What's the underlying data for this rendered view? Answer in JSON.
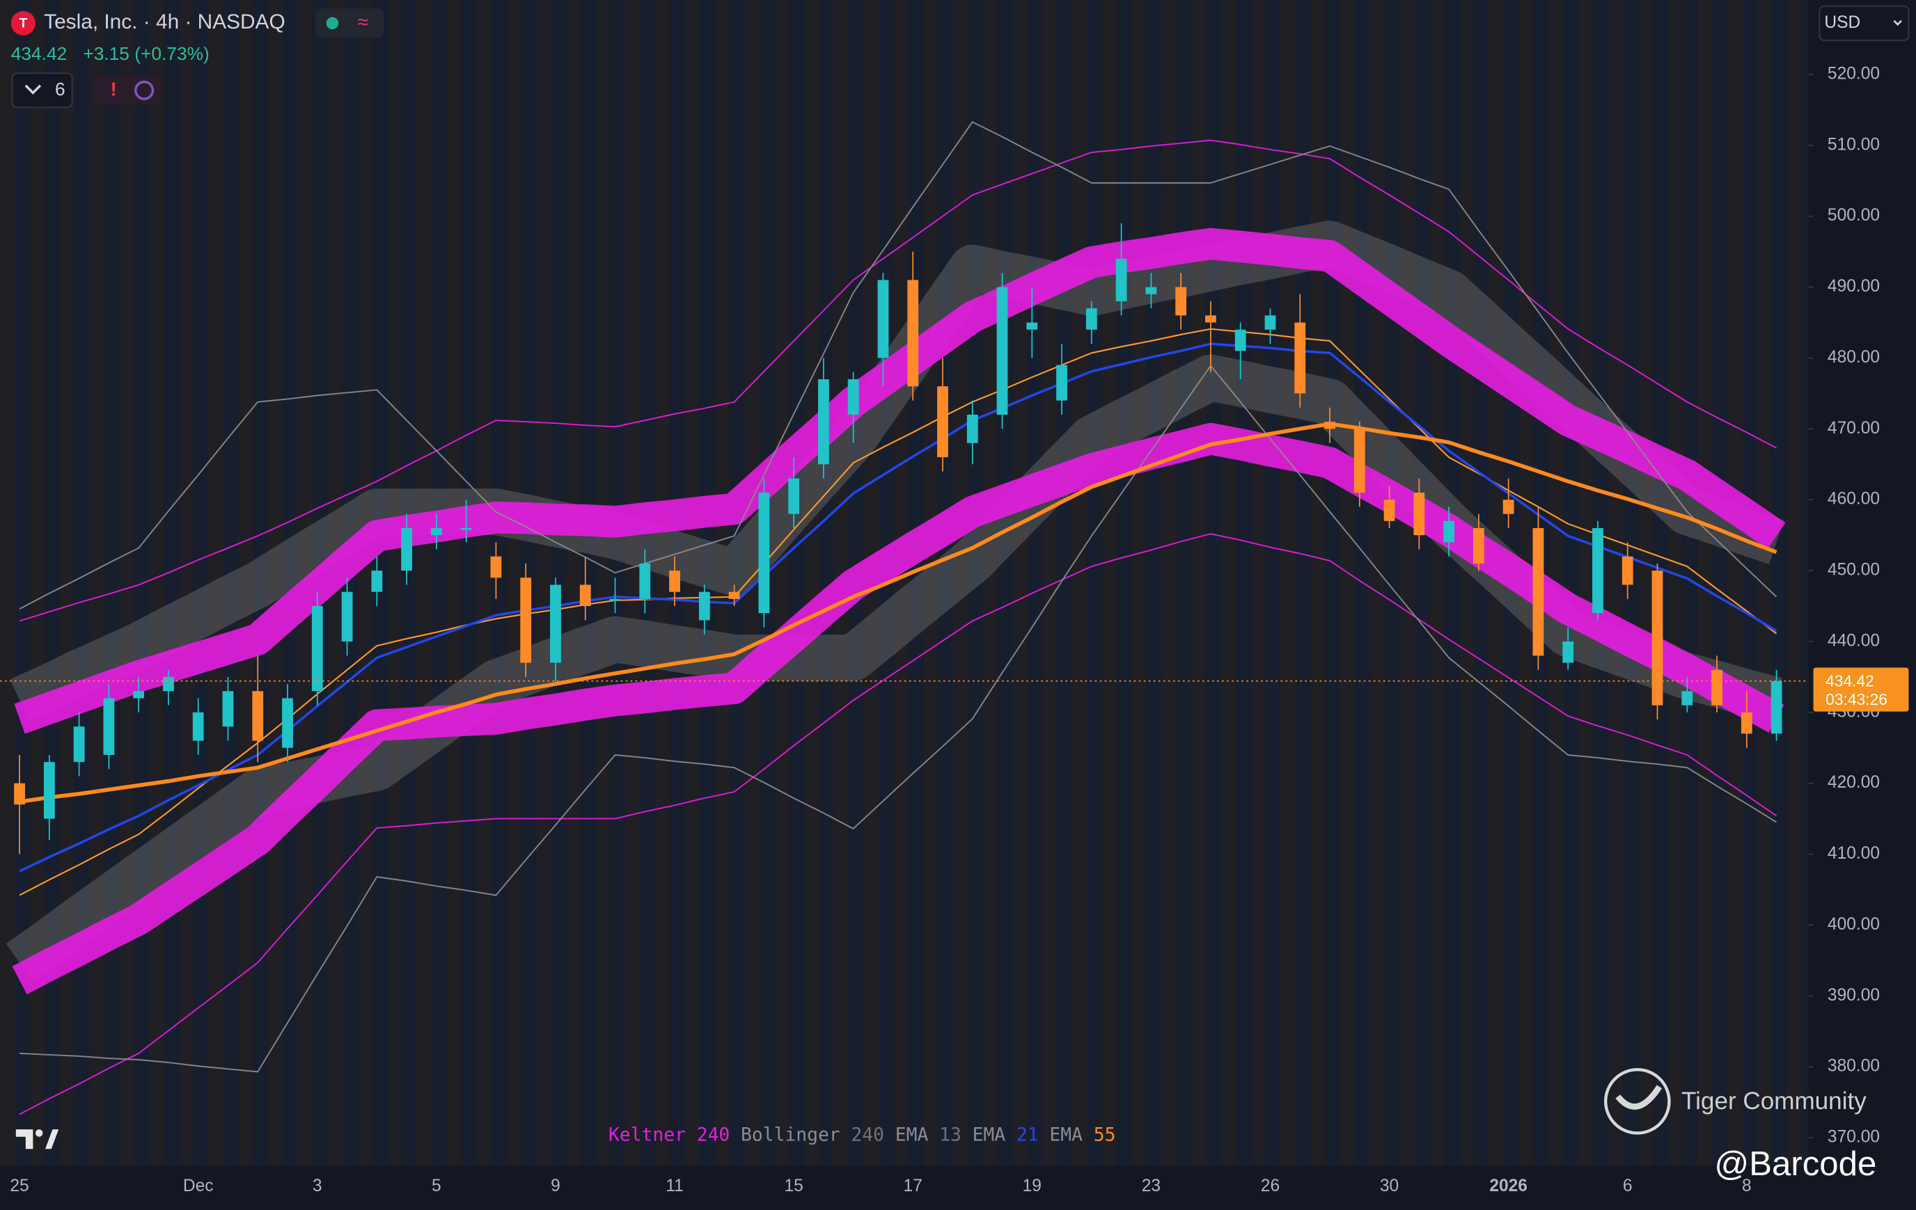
{
  "header": {
    "symbol": "Tesla, Inc. · 4h · NASDAQ",
    "change": "+3.15 (+0.73%)",
    "indicator_count": "6",
    "currency": "USD"
  },
  "price_tag": {
    "countdown": "03:43:26"
  },
  "watermark": {
    "brand": "Tiger Community",
    "user": "@Barcode"
  },
  "chart_data": {
    "type": "candlestick",
    "categories": [
      "25",
      null,
      null,
      null,
      null,
      null,
      "Dec",
      null,
      null,
      null,
      "3",
      null,
      null,
      null,
      "5",
      null,
      null,
      null,
      "9",
      null,
      null,
      null,
      "11",
      null,
      null,
      null,
      "15",
      null,
      null,
      null,
      "17",
      null,
      null,
      null,
      "19",
      null,
      null,
      null,
      "23",
      null,
      null,
      null,
      "26",
      null,
      null,
      null,
      "30",
      null,
      null,
      null,
      "2026",
      null,
      null,
      null,
      "6",
      null,
      null,
      null,
      "8",
      null
    ],
    "candles": {
      "up_color": "#22c3c9",
      "down_color": "#ff8a2a",
      "open": [
        420,
        415,
        423,
        424,
        432,
        433,
        426,
        428,
        433,
        425,
        433,
        440,
        447,
        450,
        455,
        456,
        452,
        449,
        437,
        448,
        446,
        446,
        450,
        443,
        447,
        444,
        458,
        465,
        472,
        480,
        491,
        476,
        468,
        472,
        484,
        474,
        484,
        488,
        489,
        490,
        486,
        481,
        484,
        485,
        471,
        470,
        460,
        461,
        454,
        456,
        460,
        456,
        437,
        444,
        452,
        450,
        431,
        436,
        430,
        427
      ],
      "high": [
        424,
        424,
        430,
        434,
        435,
        436,
        432,
        435,
        438,
        434,
        447,
        449,
        452,
        458,
        458,
        460,
        454,
        451,
        449,
        452,
        449,
        453,
        452,
        448,
        448,
        463,
        466,
        480,
        478,
        492,
        495,
        480,
        474,
        492,
        490,
        482,
        488,
        499,
        492,
        492,
        488,
        485,
        487,
        489,
        473,
        471,
        462,
        463,
        459,
        458,
        463,
        459,
        442,
        457,
        454,
        451,
        435,
        438,
        433,
        436
      ],
      "low": [
        410,
        412,
        421,
        422,
        430,
        431,
        424,
        426,
        423,
        423,
        431,
        438,
        445,
        448,
        453,
        454,
        446,
        435,
        434,
        443,
        444,
        444,
        445,
        441,
        445,
        442,
        456,
        463,
        468,
        476,
        474,
        464,
        465,
        470,
        480,
        472,
        482,
        486,
        487,
        484,
        478,
        477,
        482,
        473,
        468,
        459,
        456,
        453,
        452,
        450,
        456,
        436,
        436,
        443,
        446,
        429,
        430,
        430,
        425,
        426
      ],
      "close": [
        417,
        423,
        428,
        432,
        433,
        435,
        430,
        433,
        426,
        432,
        445,
        447,
        450,
        456,
        456,
        456,
        449,
        437,
        448,
        445,
        446,
        451,
        447,
        447,
        446,
        461,
        463,
        477,
        477,
        491,
        476,
        466,
        472,
        490,
        485,
        479,
        487,
        494,
        490,
        486,
        485,
        484,
        486,
        475,
        470,
        461,
        457,
        455,
        457,
        451,
        458,
        438,
        440,
        456,
        448,
        431,
        433,
        431,
        427,
        434.42
      ]
    },
    "indicators": [
      {
        "name": "Keltner",
        "period": 240,
        "color": "#e61ee0",
        "upper": [
          442.9,
          444.2,
          445.5,
          446.7,
          448.0,
          449.7,
          451.5,
          453.2,
          454.9,
          456.8,
          458.8,
          460.7,
          462.6,
          464.8,
          466.9,
          469.1,
          471.2,
          471.0,
          470.8,
          470.5,
          470.3,
          471.2,
          472.1,
          472.9,
          473.8,
          478.1,
          482.4,
          486.7,
          491.0,
          494.0,
          497.0,
          500.0,
          503.0,
          504.5,
          506.0,
          507.5,
          509.0,
          509.4,
          509.9,
          510.3,
          510.7,
          510.1,
          509.4,
          508.8,
          508.1,
          505.5,
          503.0,
          500.4,
          497.8,
          494.4,
          491.0,
          487.5,
          484.1,
          481.5,
          479.0,
          476.4,
          473.8,
          471.6,
          469.5,
          467.3
        ],
        "lower": [
          373.3,
          375.5,
          377.6,
          379.8,
          381.9,
          385.1,
          388.3,
          391.5,
          394.7,
          399.5,
          404.2,
          409.0,
          413.7,
          414.0,
          414.4,
          414.7,
          415.0,
          415.0,
          415.0,
          415.0,
          415.0,
          416.0,
          416.9,
          417.9,
          418.8,
          422.0,
          425.3,
          428.5,
          431.7,
          434.5,
          437.3,
          440.1,
          442.9,
          444.8,
          446.8,
          448.7,
          450.6,
          451.8,
          452.9,
          454.1,
          455.2,
          454.3,
          453.3,
          452.4,
          451.4,
          448.6,
          445.9,
          443.1,
          440.3,
          437.6,
          434.9,
          432.2,
          429.5,
          428.1,
          426.8,
          425.4,
          424.0,
          421.1,
          418.3,
          415.4
        ],
        "band_upper": [
          429.1,
          430.6,
          432.1,
          433.6,
          435.1,
          436.4,
          437.7,
          439.0,
          440.3,
          444.0,
          447.6,
          451.3,
          454.9,
          455.6,
          456.2,
          456.9,
          457.5,
          457.4,
          457.2,
          457.1,
          456.9,
          457.4,
          457.8,
          458.3,
          458.7,
          462.5,
          466.3,
          470.0,
          473.8,
          476.8,
          479.8,
          482.8,
          485.8,
          487.7,
          489.7,
          491.6,
          493.5,
          494.2,
          494.8,
          495.5,
          496.1,
          495.7,
          495.3,
          494.8,
          494.4,
          491.4,
          488.4,
          485.4,
          482.4,
          479.6,
          476.8,
          474.0,
          471.2,
          469.3,
          467.4,
          465.4,
          463.5,
          460.6,
          457.8,
          454.9
        ],
        "band_lower": [
          392.2,
          394.4,
          396.5,
          398.7,
          400.8,
          403.6,
          406.4,
          409.2,
          412.0,
          416.1,
          420.1,
          424.2,
          428.2,
          428.4,
          428.7,
          428.9,
          429.1,
          429.8,
          430.4,
          431.1,
          431.7,
          432.1,
          432.6,
          433.0,
          433.4,
          437.1,
          440.7,
          444.4,
          448.0,
          450.6,
          453.2,
          455.7,
          458.3,
          459.8,
          461.3,
          462.8,
          464.3,
          465.4,
          466.5,
          467.5,
          468.6,
          467.8,
          466.9,
          466.1,
          465.2,
          462.8,
          460.5,
          458.1,
          455.7,
          452.9,
          450.2,
          447.4,
          444.6,
          442.5,
          440.3,
          438.2,
          436.0,
          433.7,
          431.4,
          429.1
        ]
      },
      {
        "name": "Bollinger",
        "period": 240,
        "color": "#8c8c8c",
        "upper": [
          444.6,
          446.8,
          448.9,
          451.1,
          453.2,
          458.4,
          463.5,
          468.7,
          473.8,
          474.2,
          474.7,
          475.1,
          475.5,
          471.2,
          466.9,
          462.6,
          458.3,
          456.2,
          454.0,
          451.9,
          449.7,
          451.0,
          452.3,
          453.6,
          454.9,
          463.5,
          472.1,
          480.6,
          489.2,
          495.2,
          501.3,
          507.3,
          513.3,
          511.2,
          509.0,
          506.9,
          504.7,
          504.7,
          504.7,
          504.7,
          504.7,
          506.0,
          507.3,
          508.6,
          509.9,
          508.4,
          506.9,
          505.3,
          503.8,
          498.0,
          492.3,
          486.5,
          480.7,
          475.1,
          469.5,
          463.9,
          458.3,
          454.3,
          450.3,
          446.3
        ],
        "lower": [
          381.9,
          381.7,
          381.5,
          381.2,
          381.0,
          380.6,
          380.1,
          379.7,
          379.3,
          386.2,
          393.1,
          399.9,
          406.8,
          406.2,
          405.5,
          404.9,
          404.2,
          409.2,
          414.1,
          419.1,
          424.0,
          423.6,
          423.1,
          422.7,
          422.2,
          420.1,
          417.9,
          415.8,
          413.6,
          417.5,
          421.4,
          425.2,
          429.1,
          435.6,
          442.0,
          448.5,
          454.9,
          460.9,
          466.9,
          472.9,
          478.9,
          473.8,
          468.6,
          463.5,
          458.3,
          453.2,
          448.0,
          442.9,
          437.7,
          434.3,
          430.9,
          427.4,
          424.0,
          423.6,
          423.1,
          422.7,
          422.2,
          419.6,
          417.1,
          414.5
        ],
        "band_upper": [
          431.7,
          433.6,
          435.6,
          437.5,
          439.4,
          441.6,
          443.7,
          445.9,
          448.0,
          450.6,
          453.2,
          455.7,
          458.3,
          458.3,
          458.3,
          458.3,
          458.3,
          457.5,
          456.6,
          455.8,
          454.9,
          453.6,
          452.3,
          451.0,
          449.7,
          454.4,
          459.2,
          463.9,
          468.6,
          474.6,
          480.7,
          486.7,
          492.7,
          491.8,
          491.0,
          490.1,
          489.2,
          490.1,
          491.0,
          491.8,
          492.7,
          493.6,
          494.4,
          495.3,
          496.1,
          494.4,
          492.7,
          490.9,
          489.2,
          485.4,
          481.5,
          477.7,
          473.8,
          469.9,
          466.1,
          462.2,
          458.3,
          456.9,
          455.4,
          454.0
        ],
        "band_lower": [
          394.7,
          397.7,
          400.8,
          403.8,
          406.8,
          409.8,
          412.8,
          415.8,
          418.8,
          419.7,
          420.5,
          421.4,
          422.2,
          425.2,
          428.2,
          431.2,
          434.2,
          435.7,
          437.3,
          438.8,
          440.3,
          439.7,
          439.0,
          438.4,
          437.7,
          437.7,
          437.7,
          437.7,
          437.7,
          441.1,
          444.6,
          448.0,
          451.4,
          455.7,
          460.0,
          464.3,
          468.6,
          470.8,
          472.9,
          475.1,
          477.2,
          476.4,
          475.5,
          474.7,
          473.8,
          469.5,
          465.2,
          460.9,
          456.6,
          452.7,
          448.9,
          445.0,
          441.1,
          439.6,
          438.1,
          436.6,
          435.1,
          434.0,
          432.8,
          431.7
        ]
      },
      {
        "name": "EMA",
        "period": 13,
        "color": "#ff9a2e",
        "values": [
          404.2,
          406.4,
          408.5,
          410.7,
          412.8,
          416.0,
          419.3,
          422.5,
          425.7,
          429.1,
          432.6,
          436.0,
          439.4,
          440.4,
          441.3,
          442.3,
          443.2,
          443.9,
          444.5,
          445.2,
          445.8,
          445.9,
          446.1,
          446.2,
          446.3,
          451.0,
          455.8,
          460.5,
          465.2,
          467.4,
          469.5,
          471.7,
          473.8,
          475.5,
          477.3,
          479.0,
          480.7,
          481.6,
          482.4,
          483.3,
          484.1,
          483.7,
          483.3,
          482.8,
          482.4,
          478.3,
          474.2,
          470.1,
          466.0,
          463.7,
          461.3,
          459.0,
          456.6,
          455.1,
          453.6,
          452.1,
          450.6,
          447.4,
          444.3,
          441.1
        ]
      },
      {
        "name": "EMA",
        "period": 21,
        "color": "#2347ea",
        "values": [
          407.6,
          409.6,
          411.5,
          413.5,
          415.4,
          417.6,
          419.7,
          421.9,
          424.0,
          427.4,
          430.9,
          434.3,
          437.7,
          439.2,
          440.7,
          442.2,
          443.7,
          444.4,
          445.0,
          445.7,
          446.3,
          446.1,
          445.9,
          445.6,
          445.4,
          449.3,
          453.2,
          457.0,
          460.9,
          463.5,
          466.1,
          468.6,
          471.2,
          472.9,
          474.7,
          476.4,
          478.1,
          479.1,
          480.1,
          481.0,
          482.0,
          481.7,
          481.4,
          481.0,
          480.7,
          477.3,
          473.8,
          470.4,
          466.9,
          463.9,
          460.9,
          457.9,
          454.9,
          453.4,
          451.9,
          450.4,
          448.9,
          446.4,
          444.0,
          441.5
        ]
      },
      {
        "name": "EMA",
        "period": 55,
        "color": "#ff8a1e",
        "values": [
          417.4,
          418.0,
          418.5,
          419.1,
          419.7,
          420.3,
          421.0,
          421.6,
          422.2,
          423.5,
          424.8,
          426.1,
          427.4,
          428.7,
          430.0,
          431.2,
          432.5,
          433.3,
          434.0,
          434.8,
          435.5,
          436.2,
          436.9,
          437.5,
          438.2,
          440.2,
          442.3,
          444.3,
          446.3,
          448.0,
          449.8,
          451.5,
          453.2,
          455.4,
          457.5,
          459.7,
          461.8,
          463.3,
          464.8,
          466.3,
          467.8,
          468.5,
          469.3,
          470.0,
          470.7,
          470.1,
          469.4,
          468.8,
          468.1,
          466.7,
          465.4,
          464.0,
          462.6,
          461.3,
          460.1,
          458.8,
          457.5,
          455.9,
          454.2,
          452.6
        ]
      }
    ],
    "ylim": [
      366,
      530.5
    ],
    "yticks": [
      {
        "value": 370,
        "label": "370.00"
      },
      {
        "value": 380,
        "label": "380.00"
      },
      {
        "value": 390,
        "label": "390.00"
      },
      {
        "value": 400,
        "label": "400.00"
      },
      {
        "value": 410,
        "label": "410.00"
      },
      {
        "value": 420,
        "label": "420.00"
      },
      {
        "value": 430,
        "label": "430.00"
      },
      {
        "value": 440,
        "label": "440.00"
      },
      {
        "value": 450,
        "label": "450.00"
      },
      {
        "value": 460,
        "label": "460.00"
      },
      {
        "value": 470,
        "label": "470.00"
      },
      {
        "value": 480,
        "label": "480.00"
      },
      {
        "value": 490,
        "label": "490.00"
      },
      {
        "value": 500,
        "label": "500.00"
      },
      {
        "value": 510,
        "label": "510.00"
      },
      {
        "value": 520,
        "label": "520.00"
      }
    ],
    "grid": false
  }
}
